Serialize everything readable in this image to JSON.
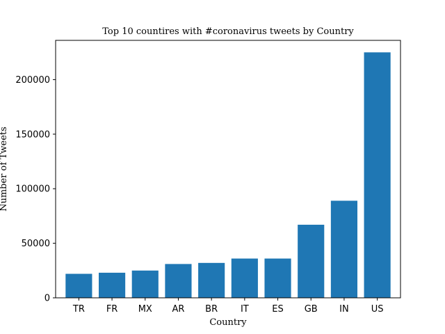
{
  "chart_data": {
    "type": "bar",
    "title": "Top 10 countires with #coronavirus tweets by Country",
    "xlabel": "Country",
    "ylabel": "Number of Tweets",
    "categories": [
      "TR",
      "FR",
      "MX",
      "AR",
      "BR",
      "IT",
      "ES",
      "GB",
      "IN",
      "US"
    ],
    "values": [
      22000,
      23000,
      25000,
      31000,
      32000,
      36000,
      36000,
      67000,
      89000,
      225000
    ],
    "ylim": [
      0,
      236000
    ],
    "yticks": [
      0,
      50000,
      100000,
      150000,
      200000
    ],
    "ytick_labels": [
      "0",
      "50000",
      "100000",
      "150000",
      "200000"
    ],
    "bar_color": "#1f77b4",
    "grid": false,
    "legend": "none"
  }
}
